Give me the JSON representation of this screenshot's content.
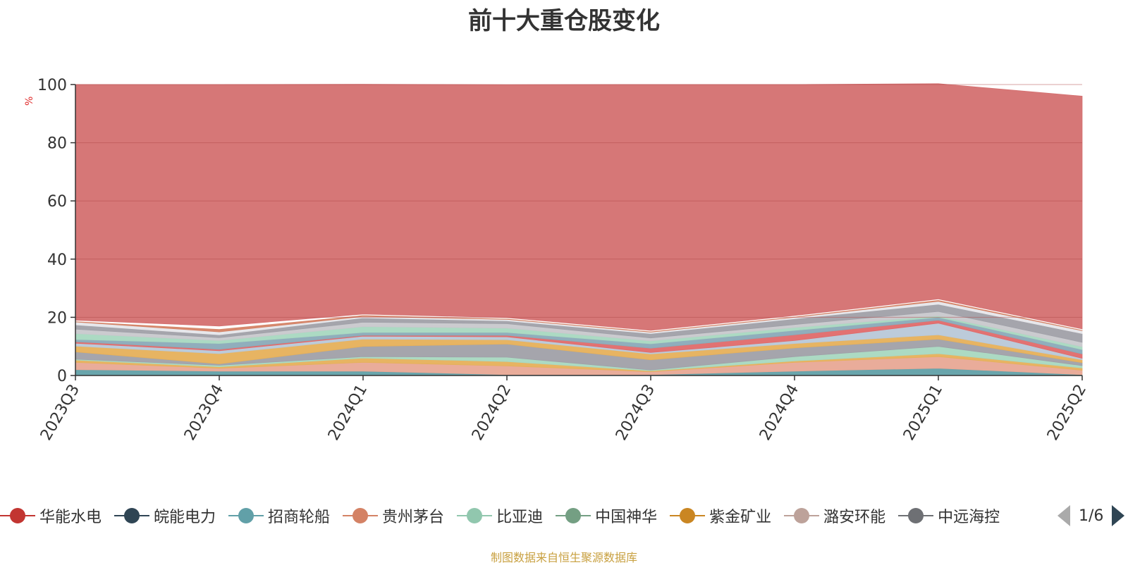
{
  "title": "前十大重仓股变化",
  "ylabel": "%",
  "source_note": "制图数据来自恒生聚源数据库",
  "legend": {
    "items": [
      {
        "name": "华能水电",
        "color": "#c23531"
      },
      {
        "name": "皖能电力",
        "color": "#2f4554"
      },
      {
        "name": "招商轮船",
        "color": "#61a0a8"
      },
      {
        "name": "贵州茅台",
        "color": "#d48265"
      },
      {
        "name": "比亚迪",
        "color": "#91c7ae"
      },
      {
        "name": "中国神华",
        "color": "#749f83"
      },
      {
        "name": "紫金矿业",
        "color": "#ca8622"
      },
      {
        "name": "潞安环能",
        "color": "#bda29a"
      },
      {
        "name": "中远海控",
        "color": "#6e7074"
      }
    ],
    "page": "1/6"
  },
  "chart_data": {
    "type": "area",
    "stacked": true,
    "title": "前十大重仓股变化",
    "ylabel": "%",
    "ylim": [
      0,
      100
    ],
    "yticks": [
      0,
      20,
      40,
      60,
      80,
      100
    ],
    "grid": true,
    "categories": [
      "2023Q3",
      "2023Q4",
      "2024Q1",
      "2024Q2",
      "2024Q3",
      "2024Q4",
      "2025Q1",
      "2025Q2"
    ],
    "series": [
      {
        "color": "#61a0a8",
        "values": [
          2.0,
          1.5,
          1.5,
          0.3,
          0.3,
          1.5,
          2.5,
          0.3
        ]
      },
      {
        "color": "#e8a895",
        "values": [
          2.5,
          1.0,
          3.0,
          3.0,
          1.0,
          3.0,
          4.0,
          1.5
        ]
      },
      {
        "color": "#e6b05a",
        "values": [
          0.8,
          0.5,
          1.5,
          1.5,
          0.3,
          0.5,
          1.0,
          0.8
        ]
      },
      {
        "color": "#a8d8c0",
        "values": [
          0.3,
          0.5,
          0.5,
          1.5,
          0.3,
          1.5,
          2.5,
          0.8
        ]
      },
      {
        "color": "#a0a0a8",
        "values": [
          2.5,
          0.5,
          3.5,
          4.5,
          3.5,
          3.0,
          2.5,
          1.0
        ]
      },
      {
        "color": "#e6b05a",
        "values": [
          2.0,
          3.5,
          2.5,
          1.5,
          2.0,
          1.5,
          1.5,
          1.0
        ]
      },
      {
        "color": "#b8c8d8",
        "values": [
          1.0,
          1.0,
          1.0,
          1.0,
          0.5,
          1.0,
          4.0,
          0.5
        ]
      },
      {
        "color": "#e06a6a",
        "values": [
          0.5,
          0.5,
          0.3,
          0.5,
          1.5,
          2.0,
          1.0,
          1.5
        ]
      },
      {
        "color": "#8aaab8",
        "values": [
          0.8,
          2.0,
          1.0,
          1.0,
          1.5,
          1.5,
          1.0,
          1.5
        ]
      },
      {
        "color": "#a8d8c0",
        "values": [
          2.0,
          1.0,
          2.0,
          1.5,
          1.0,
          1.0,
          0.5,
          1.0
        ]
      },
      {
        "color": "#c8c8cc",
        "values": [
          1.5,
          1.0,
          1.5,
          1.5,
          1.0,
          1.0,
          1.5,
          1.5
        ]
      },
      {
        "color": "#a0a0a8",
        "values": [
          1.5,
          1.0,
          1.5,
          1.0,
          1.5,
          2.0,
          2.5,
          3.0
        ]
      },
      {
        "color": "#e6e6ea",
        "values": [
          1.0,
          1.0,
          0.5,
          0.5,
          0.5,
          0.5,
          1.0,
          1.0
        ]
      },
      {
        "color": "#d48265",
        "values": [
          0.3,
          1.0,
          0.5,
          0.3,
          0.3,
          0.3,
          0.5,
          0.3
        ]
      },
      {
        "color": "#ffffff",
        "values": [
          0.3,
          1.0,
          0.3,
          0.3,
          0.3,
          0.3,
          0.3,
          0.3
        ]
      },
      {
        "color": "#d47070",
        "values": [
          81.0,
          83.0,
          79.0,
          80.0,
          84.5,
          79.4,
          74.0,
          80.0
        ]
      }
    ]
  }
}
